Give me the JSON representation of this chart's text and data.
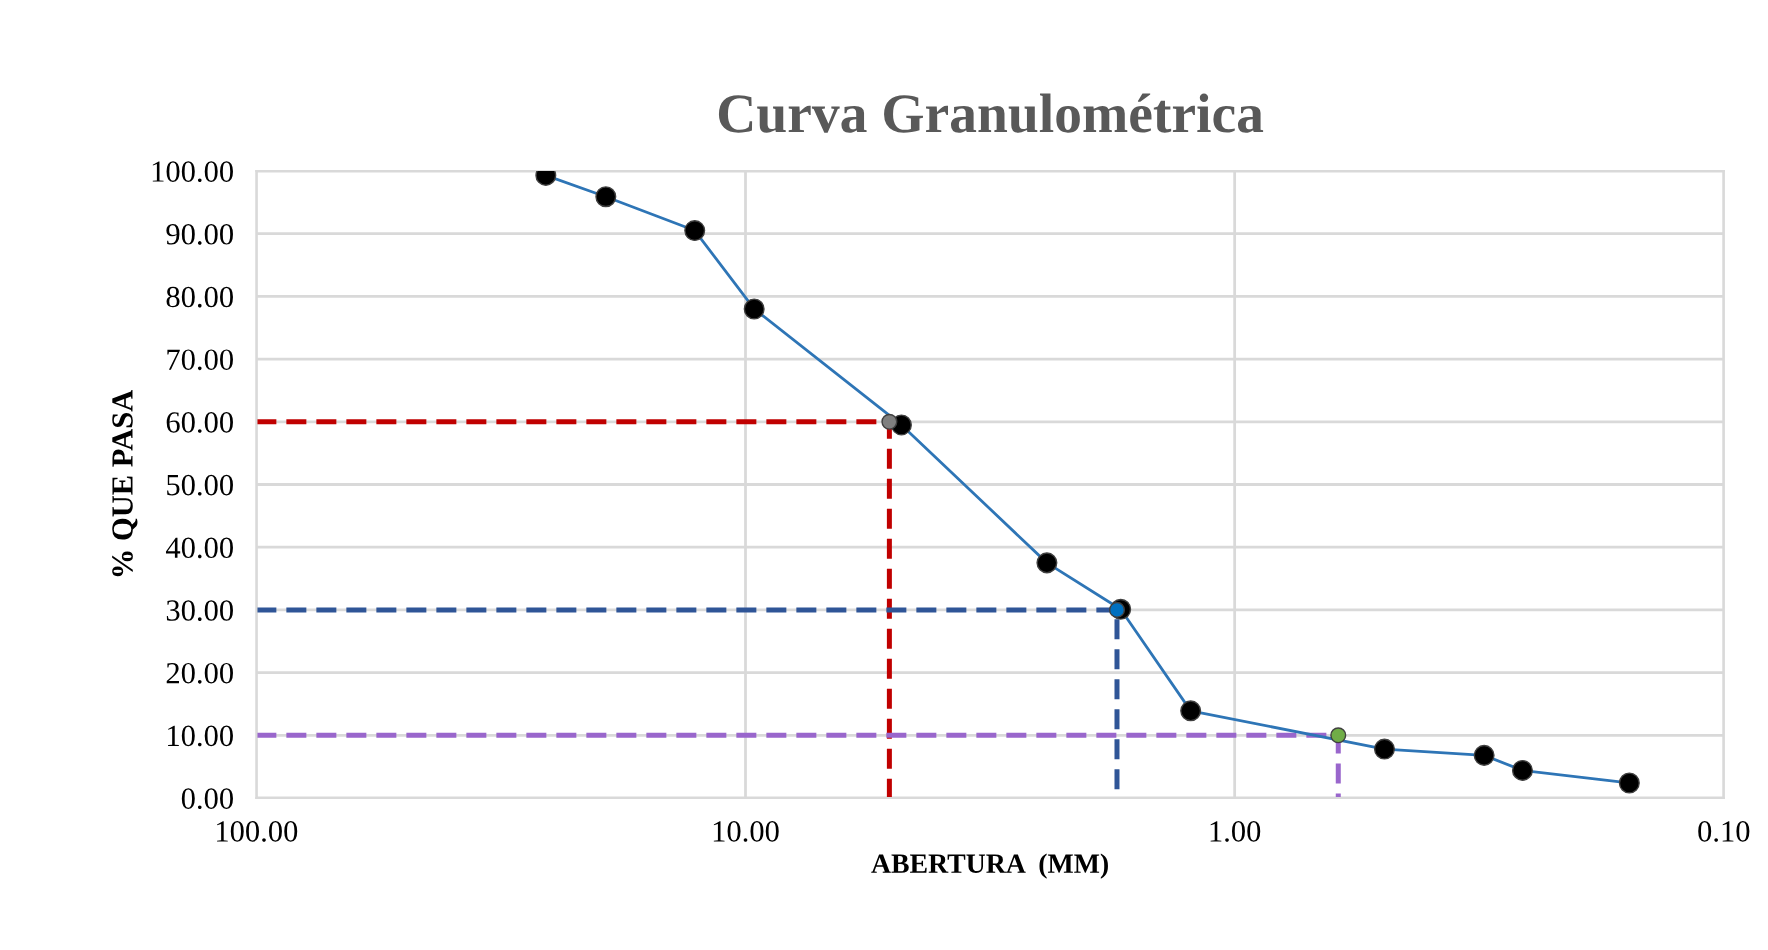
{
  "chart_data": {
    "type": "line",
    "title": "Curva Granulométrica",
    "xlabel": "ABERTURA  (MM)",
    "ylabel": "% QUE PASA",
    "log": "x",
    "grid": true,
    "marker": "circle",
    "xlim": [
      100,
      0.1
    ],
    "xticks": [
      {
        "value": 100,
        "label": "100.00"
      },
      {
        "value": 10,
        "label": "10.00"
      },
      {
        "value": 1,
        "label": "1.00"
      },
      {
        "value": 0.1,
        "label": "0.10"
      }
    ],
    "ylim": [
      0,
      100
    ],
    "yticks": [
      {
        "value": 0,
        "label": "0.00"
      },
      {
        "value": 10,
        "label": "10.00"
      },
      {
        "value": 20,
        "label": "20.00"
      },
      {
        "value": 30,
        "label": "30.00"
      },
      {
        "value": 40,
        "label": "40.00"
      },
      {
        "value": 50,
        "label": "50.00"
      },
      {
        "value": 60,
        "label": "60.00"
      },
      {
        "value": 70,
        "label": "70.00"
      },
      {
        "value": 80,
        "label": "80.00"
      },
      {
        "value": 90,
        "label": "90.00"
      },
      {
        "value": 100,
        "label": "100.00"
      }
    ],
    "series": [
      {
        "type": "line",
        "line_style": "dashed",
        "marker": "none",
        "color": "#c00000",
        "x": [
          100,
          5.08,
          5.08
        ],
        "values": [
          60,
          60,
          0
        ]
      },
      {
        "type": "line",
        "line_style": "dashed",
        "marker": "none",
        "color": "#2f5597",
        "x": [
          100,
          1.74,
          1.74
        ],
        "values": [
          30,
          30,
          0
        ]
      },
      {
        "type": "line",
        "line_style": "dashed",
        "marker": "none",
        "color": "#9966cc",
        "x": [
          100,
          0.614,
          0.614
        ],
        "values": [
          10,
          10,
          0
        ]
      },
      {
        "line_style": "solid",
        "marker": "none",
        "color": "#2e75b6",
        "x": [
          25.6,
          19.3,
          12.7,
          9.6,
          4.8,
          2.42,
          1.71,
          1.23,
          0.494,
          0.309,
          0.258,
          0.156
        ],
        "values": [
          99.3,
          95.9,
          90.5,
          78.0,
          59.5,
          37.5,
          30.1,
          13.9,
          7.8,
          6.8,
          4.4,
          2.4
        ]
      },
      {
        "type": "scatter",
        "color": "#000000",
        "x": [
          25.6,
          19.3,
          12.7,
          9.6,
          4.8,
          2.42,
          1.71,
          1.23,
          0.494,
          0.309,
          0.258,
          0.156
        ],
        "values": [
          99.3,
          95.9,
          90.5,
          78.0,
          59.5,
          37.5,
          30.1,
          13.9,
          7.8,
          6.8,
          4.4,
          2.4
        ]
      },
      {
        "type": "scatter",
        "color": "#7f7f7f",
        "x": [
          5.08
        ],
        "values": [
          60
        ]
      },
      {
        "type": "scatter",
        "color": "#0070c0",
        "x": [
          1.74
        ],
        "values": [
          30
        ]
      },
      {
        "type": "scatter",
        "color": "#70ad47",
        "x": [
          0.614
        ],
        "values": [
          10
        ]
      }
    ]
  }
}
